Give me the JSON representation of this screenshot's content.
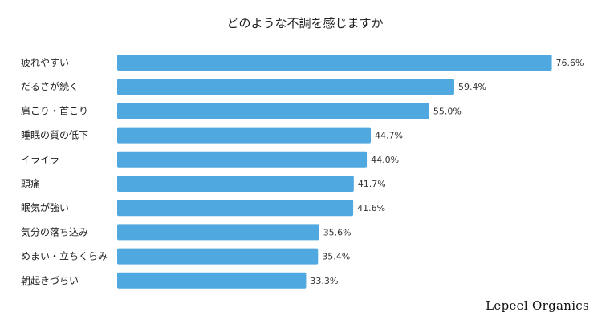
{
  "chart_data": {
    "type": "bar",
    "orientation": "horizontal",
    "title": "どのような不調を感じますか",
    "categories": [
      "疲れやすい",
      "だるさが続く",
      "肩こり・首こり",
      "睡眠の質の低下",
      "イライラ",
      "頭痛",
      "眠気が強い",
      "気分の落ち込み",
      "めまい・立ちくらみ",
      "朝起きづらい"
    ],
    "values": [
      76.6,
      59.4,
      55.0,
      44.7,
      44.0,
      41.7,
      41.6,
      35.6,
      35.4,
      33.3
    ],
    "value_labels": [
      "76.6%",
      "59.4%",
      "55.0%",
      "44.7%",
      "44.0%",
      "41.7%",
      "41.6%",
      "35.6%",
      "35.4%",
      "33.3%"
    ],
    "xlim": [
      0,
      100
    ],
    "grid": false,
    "legend": "none",
    "bar_color": "#4fa8df"
  },
  "brand": "Lepeel Organics"
}
